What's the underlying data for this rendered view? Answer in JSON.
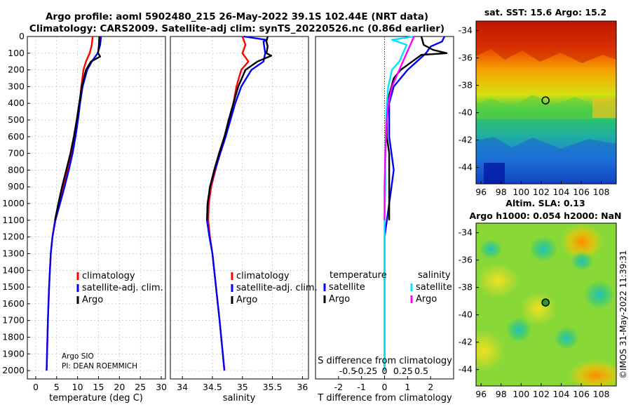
{
  "header": {
    "line1": "Argo profile: aoml 5902480_215 26-May-2022 39.1S 102.44E (NRT data)",
    "line2": "Climatology: CARS2009. Satellite-adj clim: synTS_20220526.nc (0.86d earlier)"
  },
  "colors": {
    "climatology": "#ff0000",
    "satellite_adj": "#0000ff",
    "argo": "#000000",
    "s_satellite": "#00e5ff",
    "s_argo": "#ff00ff"
  },
  "chart_data": [
    {
      "type": "line",
      "id": "temperature",
      "xlabel": "temperature (deg C)",
      "ylabel": "",
      "xlim": [
        -2,
        31
      ],
      "ylim": [
        2050,
        0
      ],
      "xticks": [
        0,
        5,
        10,
        15,
        20,
        25,
        30
      ],
      "yticks": [
        0,
        100,
        200,
        300,
        400,
        500,
        600,
        700,
        800,
        900,
        1000,
        1100,
        1200,
        1300,
        1400,
        1500,
        1600,
        1700,
        1800,
        1900,
        2000
      ],
      "grid": true,
      "legend": [
        "climatology",
        "satellite-adj. clim.",
        "Argo"
      ],
      "annotation": [
        "Argo SIO",
        "PI: DEAN ROEMMICH"
      ],
      "series": [
        {
          "name": "climatology",
          "depth": [
            0,
            50,
            100,
            150,
            200,
            300,
            400,
            500,
            600,
            700,
            800,
            900,
            1000,
            1100,
            1200,
            1300,
            1500,
            1700,
            2000
          ],
          "values": [
            13.6,
            13.4,
            12.9,
            12.0,
            11.4,
            10.9,
            10.5,
            10.0,
            9.4,
            8.6,
            7.6,
            6.6,
            5.6,
            4.6,
            4.0,
            3.6,
            3.2,
            2.9,
            2.6
          ]
        },
        {
          "name": "satellite-adj. clim.",
          "depth": [
            0,
            50,
            100,
            150,
            200,
            300,
            400,
            500,
            600,
            700,
            800,
            900,
            1000,
            1100,
            1200,
            1300,
            1500,
            1700,
            2000
          ],
          "values": [
            15.6,
            15.4,
            14.8,
            13.4,
            12.3,
            11.2,
            10.6,
            10.1,
            9.5,
            8.8,
            7.9,
            6.9,
            5.8,
            4.7,
            4.0,
            3.6,
            3.2,
            2.9,
            2.6
          ]
        },
        {
          "name": "Argo",
          "depth": [
            0,
            50,
            100,
            120,
            150,
            200,
            300,
            400,
            500,
            600,
            700,
            800,
            900,
            1000,
            1100
          ],
          "values": [
            15.2,
            15.1,
            14.9,
            15.4,
            13.2,
            12.0,
            11.0,
            10.4,
            9.8,
            9.1,
            8.3,
            7.3,
            6.3,
            5.4,
            4.6
          ]
        }
      ]
    },
    {
      "type": "line",
      "id": "salinity",
      "xlabel": "salinity",
      "ylabel": "",
      "xlim": [
        33.8,
        36.1
      ],
      "ylim": [
        2050,
        0
      ],
      "xticks": [
        34,
        34.5,
        35,
        35.5,
        36
      ],
      "grid": true,
      "legend": [
        "climatology",
        "satellite-adj. clim.",
        "Argo"
      ],
      "series": [
        {
          "name": "climatology",
          "depth": [
            0,
            50,
            100,
            150,
            200,
            300,
            400,
            500,
            600,
            700,
            800,
            900,
            1000,
            1100,
            1200,
            1300,
            1500,
            1700,
            2000
          ],
          "values": [
            35.0,
            35.05,
            35.0,
            35.1,
            34.98,
            34.9,
            34.85,
            34.78,
            34.72,
            34.63,
            34.55,
            34.48,
            34.44,
            34.43,
            34.46,
            34.5,
            34.56,
            34.62,
            34.7
          ]
        },
        {
          "name": "satellite-adj. clim.",
          "depth": [
            0,
            20,
            30,
            100,
            150,
            200,
            300,
            400,
            500,
            600,
            700,
            800,
            900,
            1000,
            1100,
            1200,
            1300,
            1500,
            1700,
            2000
          ],
          "values": [
            35.02,
            35.4,
            35.35,
            35.38,
            35.35,
            35.15,
            34.98,
            34.88,
            34.8,
            34.72,
            34.63,
            34.54,
            34.46,
            34.42,
            34.41,
            34.45,
            34.5,
            34.56,
            34.62,
            34.7
          ]
        },
        {
          "name": "Argo",
          "depth": [
            0,
            30,
            60,
            100,
            115,
            150,
            200,
            300,
            400,
            500,
            600,
            700,
            800,
            900,
            1000,
            1100
          ],
          "values": [
            35.42,
            35.4,
            35.42,
            35.4,
            35.48,
            35.25,
            35.05,
            34.93,
            34.85,
            34.77,
            34.7,
            34.61,
            34.53,
            34.46,
            34.42,
            34.41
          ]
        }
      ]
    },
    {
      "type": "line",
      "id": "differences",
      "xlabel": "T difference from climatology",
      "x2label": "S difference from climatology",
      "xlim": [
        -3,
        3
      ],
      "ylim": [
        2050,
        0
      ],
      "xticks": [
        -2,
        -1,
        0,
        1,
        2
      ],
      "s_ticks": [
        "-0.5",
        "-0.25",
        "0",
        "0.25",
        "0.5"
      ],
      "grid": false,
      "legend_t_title": "temperature",
      "legend_s_title": "salinity",
      "legend_t": [
        "satellite",
        "Argo"
      ],
      "legend_s": [
        "satellite",
        "Argo"
      ],
      "series": [
        {
          "name": "T satellite",
          "depth": [
            0,
            30,
            60,
            100,
            150,
            200,
            300,
            400,
            500,
            600,
            700,
            800,
            900,
            1000,
            1100,
            1200,
            1300,
            1500,
            1700,
            2000
          ],
          "values": [
            2.6,
            2.5,
            2.0,
            1.8,
            1.4,
            1.0,
            0.4,
            0.2,
            0.2,
            0.2,
            0.3,
            0.4,
            0.3,
            0.2,
            0.1,
            0.0,
            0.0,
            0.0,
            0.0,
            0.0
          ]
        },
        {
          "name": "T Argo",
          "depth": [
            0,
            50,
            80,
            100,
            110,
            150,
            200,
            250,
            300,
            400,
            500,
            600,
            700,
            800,
            900,
            1000,
            1100
          ],
          "values": [
            1.6,
            1.7,
            2.1,
            2.7,
            1.6,
            1.2,
            0.7,
            0.4,
            0.3,
            0.1,
            0.1,
            0.1,
            0.2,
            0.2,
            0.2,
            0.2,
            0.2
          ]
        },
        {
          "name": "S satellite",
          "depth": [
            0,
            20,
            50,
            100,
            150,
            200,
            300,
            400,
            500,
            700,
            900,
            1100,
            1200,
            1500,
            2000
          ],
          "values": [
            0.4,
            0.1,
            0.3,
            0.25,
            0.2,
            0.1,
            0.05,
            0.03,
            0.02,
            0.01,
            0.01,
            0.0,
            0.0,
            0.0,
            0.0
          ]
        },
        {
          "name": "S Argo",
          "depth": [
            0,
            100,
            200,
            300,
            400,
            500,
            700,
            900,
            1100
          ],
          "values": [
            0.4,
            0.3,
            0.2,
            0.1,
            0.05,
            0.03,
            0.01,
            0.0,
            0.0
          ]
        }
      ]
    },
    {
      "type": "heatmap",
      "id": "sst_map",
      "title": "sat. SST: 15.6 Argo: 15.2",
      "xlim": [
        95.5,
        109.5
      ],
      "ylim": [
        -45.2,
        -33.3
      ],
      "xticks": [
        96,
        98,
        100,
        102,
        104,
        106,
        108
      ],
      "yticks": [
        -34,
        -36,
        -38,
        -40,
        -42,
        -44
      ],
      "marker": {
        "lon": 102.44,
        "lat": -39.1
      }
    },
    {
      "type": "heatmap",
      "id": "sla_map",
      "title": "Altim. SLA: 0.13",
      "subtitle": "Argo h1000: 0.054 h2000: NaN",
      "xlim": [
        95.5,
        109.5
      ],
      "ylim": [
        -45.2,
        -33.3
      ],
      "xticks": [
        96,
        98,
        100,
        102,
        104,
        106,
        108
      ],
      "yticks": [
        -34,
        -36,
        -38,
        -40,
        -42,
        -44
      ],
      "marker": {
        "lon": 102.44,
        "lat": -39.1
      }
    }
  ],
  "copyright": "©IMOS 31-May-2022 11:39:31"
}
